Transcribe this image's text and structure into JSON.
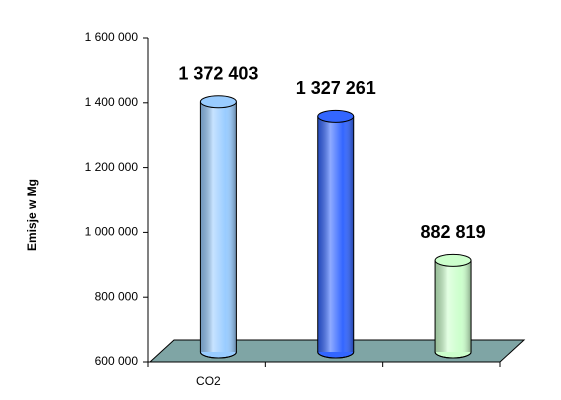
{
  "chart_data": {
    "type": "bar",
    "y_label": "Emisje  w Mg",
    "categories": [
      "CO2",
      null,
      null
    ],
    "values": [
      1372403,
      1327261,
      882819
    ],
    "value_labels": [
      "1 372 403",
      "1 327 261",
      "882 819"
    ],
    "colors": [
      "#99ccff",
      "#3366ff",
      "#ccffcc"
    ],
    "ylim": [
      600000,
      1600000
    ],
    "yticks": [
      {
        "value": 600000,
        "label": "600 000"
      },
      {
        "value": 800000,
        "label": "800 000"
      },
      {
        "value": 1000000,
        "label": "1 000 000"
      },
      {
        "value": 1200000,
        "label": "1 200 000"
      },
      {
        "value": 1400000,
        "label": "1 400 000"
      },
      {
        "value": 1600000,
        "label": "1 600 000"
      }
    ]
  }
}
